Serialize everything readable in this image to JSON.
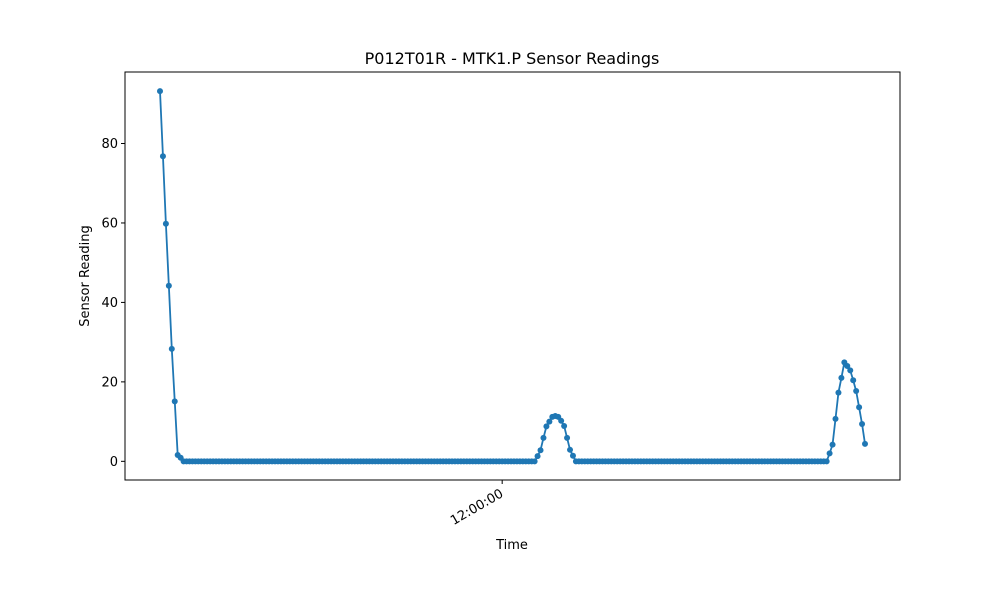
{
  "chart_data": {
    "type": "line",
    "title": "P012T01R - MTK1.P Sensor Readings",
    "xlabel": "Time",
    "ylabel": "Sensor Reading",
    "x_tick_labels": [
      "12:00:00"
    ],
    "y_ticks": [
      0,
      20,
      40,
      60,
      80
    ],
    "ylim": [
      -4.7,
      98
    ],
    "grid": false,
    "legend": "none",
    "series": [
      {
        "color": "#1f77b4",
        "marker": "circle",
        "segments": [
          {
            "values": [
              93.2,
              76.8,
              59.8,
              44.2,
              28.3,
              15.1,
              1.6,
              0.9
            ]
          },
          {
            "zeros": 120
          },
          {
            "values": [
              1.3,
              2.8,
              5.9,
              8.8,
              10.0,
              11.2,
              11.4,
              11.2,
              10.2,
              8.9,
              5.9,
              2.9,
              1.4
            ]
          },
          {
            "zeros": 86
          },
          {
            "values": [
              2.0,
              4.2,
              10.7,
              17.3,
              21.0,
              24.9,
              24.0,
              22.9,
              20.4,
              17.7,
              13.6,
              9.4,
              4.4
            ]
          }
        ]
      }
    ],
    "x_tick_index": 116
  }
}
